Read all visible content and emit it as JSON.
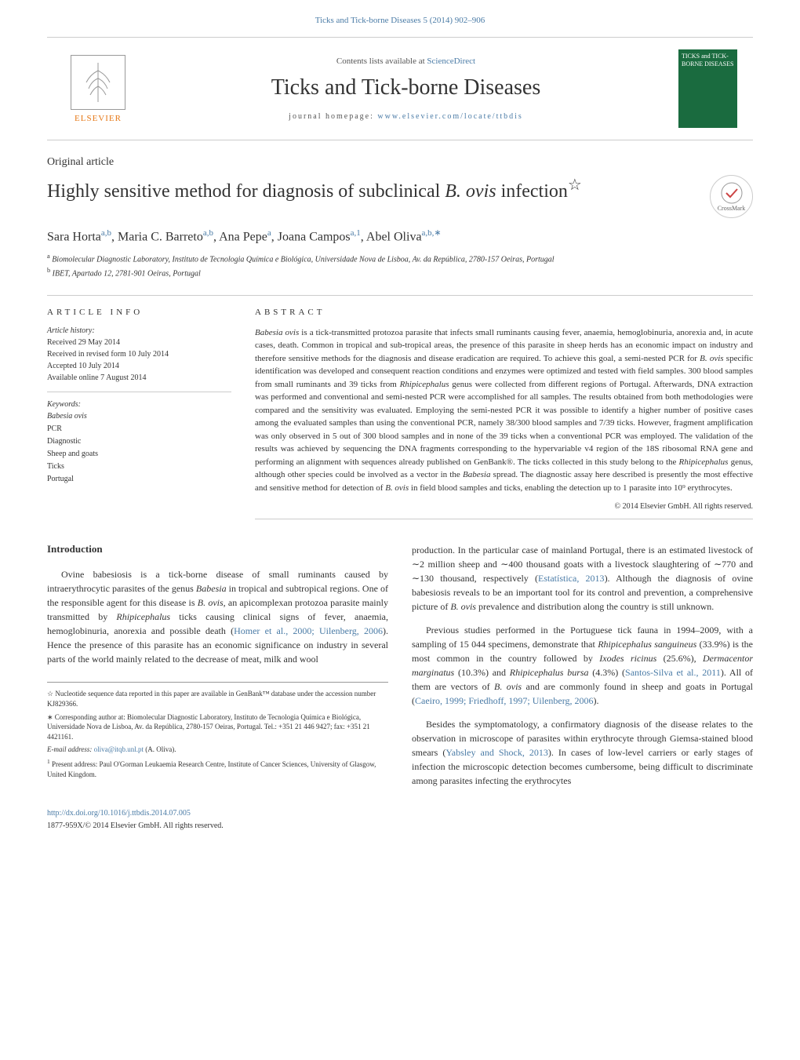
{
  "header_ref": "Ticks and Tick-borne Diseases 5 (2014) 902–906",
  "banner": {
    "contents_prefix": "Contents lists available at ",
    "contents_link": "ScienceDirect",
    "journal_name": "Ticks and Tick-borne Diseases",
    "homepage_prefix": "journal homepage: ",
    "homepage_url": "www.elsevier.com/locate/ttbdis",
    "publisher": "ELSEVIER",
    "cover_text": "TICKS and TICK-BORNE DISEASES"
  },
  "article_type": "Original article",
  "title_prefix": "Highly sensitive method for diagnosis of subclinical ",
  "title_species": "B. ovis",
  "title_suffix": " infection",
  "title_note": "☆",
  "crossmark": "CrossMark",
  "authors_html": "Sara Horta<sup>a,b</sup>, Maria C. Barreto<sup>a,b</sup>, Ana Pepe<sup>a</sup>, Joana Campos<sup>a,1</sup>, Abel Oliva<sup>a,b,∗</sup>",
  "affiliations": {
    "a": "Biomolecular Diagnostic Laboratory, Instituto de Tecnologia Química e Biológica, Universidade Nova de Lisboa, Av. da República, 2780-157 Oeiras, Portugal",
    "b": "IBET, Apartado 12, 2781-901 Oeiras, Portugal"
  },
  "article_info": {
    "heading": "ARTICLE INFO",
    "history_label": "Article history:",
    "received": "Received 29 May 2014",
    "revised": "Received in revised form 10 July 2014",
    "accepted": "Accepted 10 July 2014",
    "online": "Available online 7 August 2014",
    "keywords_label": "Keywords:",
    "keywords": [
      "Babesia ovis",
      "PCR",
      "Diagnostic",
      "Sheep and goats",
      "Ticks",
      "Portugal"
    ]
  },
  "abstract": {
    "heading": "ABSTRACT",
    "text": "Babesia ovis is a tick-transmitted protozoa parasite that infects small ruminants causing fever, anaemia, hemoglobinuria, anorexia and, in acute cases, death. Common in tropical and sub-tropical areas, the presence of this parasite in sheep herds has an economic impact on industry and therefore sensitive methods for the diagnosis and disease eradication are required. To achieve this goal, a semi-nested PCR for B. ovis specific identification was developed and consequent reaction conditions and enzymes were optimized and tested with field samples. 300 blood samples from small ruminants and 39 ticks from Rhipicephalus genus were collected from different regions of Portugal. Afterwards, DNA extraction was performed and conventional and semi-nested PCR were accomplished for all samples. The results obtained from both methodologies were compared and the sensitivity was evaluated. Employing the semi-nested PCR it was possible to identify a higher number of positive cases among the evaluated samples than using the conventional PCR, namely 38/300 blood samples and 7/39 ticks. However, fragment amplification was only observed in 5 out of 300 blood samples and in none of the 39 ticks when a conventional PCR was employed. The validation of the results was achieved by sequencing the DNA fragments corresponding to the hypervariable v4 region of the 18S ribosomal RNA gene and performing an alignment with sequences already published on GenBank®. The ticks collected in this study belong to the Rhipicephalus genus, although other species could be involved as a vector in the Babesia spread. The diagnostic assay here described is presently the most effective and sensitive method for detection of B. ovis in field blood samples and ticks, enabling the detection up to 1 parasite into 10⁹ erythrocytes.",
    "copyright": "© 2014 Elsevier GmbH. All rights reserved."
  },
  "intro": {
    "heading": "Introduction",
    "p1": "Ovine babesiosis is a tick-borne disease of small ruminants caused by intraerythrocytic parasites of the genus Babesia in tropical and subtropical regions. One of the responsible agent for this disease is B. ovis, an apicomplexan protozoa parasite mainly transmitted by Rhipicephalus ticks causing clinical signs of fever, anaemia, hemoglobinuria, anorexia and possible death (Homer et al., 2000; Uilenberg, 2006). Hence the presence of this parasite has an economic significance on industry in several parts of the world mainly related to the decrease of meat, milk and wool",
    "p2": "production. In the particular case of mainland Portugal, there is an estimated livestock of ∼2 million sheep and ∼400 thousand goats with a livestock slaughtering of ∼770 and ∼130 thousand, respectively (Estatística, 2013). Although the diagnosis of ovine babesiosis reveals to be an important tool for its control and prevention, a comprehensive picture of B. ovis prevalence and distribution along the country is still unknown.",
    "p3": "Previous studies performed in the Portuguese tick fauna in 1994–2009, with a sampling of 15 044 specimens, demonstrate that Rhipicephalus sanguineus (33.9%) is the most common in the country followed by Ixodes ricinus (25.6%), Dermacentor marginatus (10.3%) and Rhipicephalus bursa (4.3%) (Santos-Silva et al., 2011). All of them are vectors of B. ovis and are commonly found in sheep and goats in Portugal (Caeiro, 1999; Friedhoff, 1997; Uilenberg, 2006).",
    "p4": "Besides the symptomatology, a confirmatory diagnosis of the disease relates to the observation in microscope of parasites within erythrocyte through Giemsa-stained blood smears (Yabsley and Shock, 2013). In cases of low-level carriers or early stages of infection the microscopic detection becomes cumbersome, being difficult to discriminate among parasites infecting the erythrocytes"
  },
  "footnotes": {
    "star": "Nucleotide sequence data reported in this paper are available in GenBank™ database under the accession number KJ829366.",
    "corr": "Corresponding author at: Biomolecular Diagnostic Laboratory, Instituto de Tecnologia Química e Biológica, Universidade Nova de Lisboa, Av. da República, 2780-157 Oeiras, Portugal. Tel.: +351 21 446 9427; fax: +351 21 4421161.",
    "email_label": "E-mail address: ",
    "email": "oliva@itqb.unl.pt",
    "email_name": " (A. Oliva).",
    "present": "Present address: Paul O'Gorman Leukaemia Research Centre, Institute of Cancer Sciences, University of Glasgow, United Kingdom."
  },
  "doi": "http://dx.doi.org/10.1016/j.ttbdis.2014.07.005",
  "issn": "1877-959X/© 2014 Elsevier GmbH. All rights reserved.",
  "colors": {
    "link": "#4a7ba6",
    "elsevier": "#e67817",
    "cover_bg": "#1a6b3f",
    "text": "#333333",
    "border": "#cccccc"
  }
}
